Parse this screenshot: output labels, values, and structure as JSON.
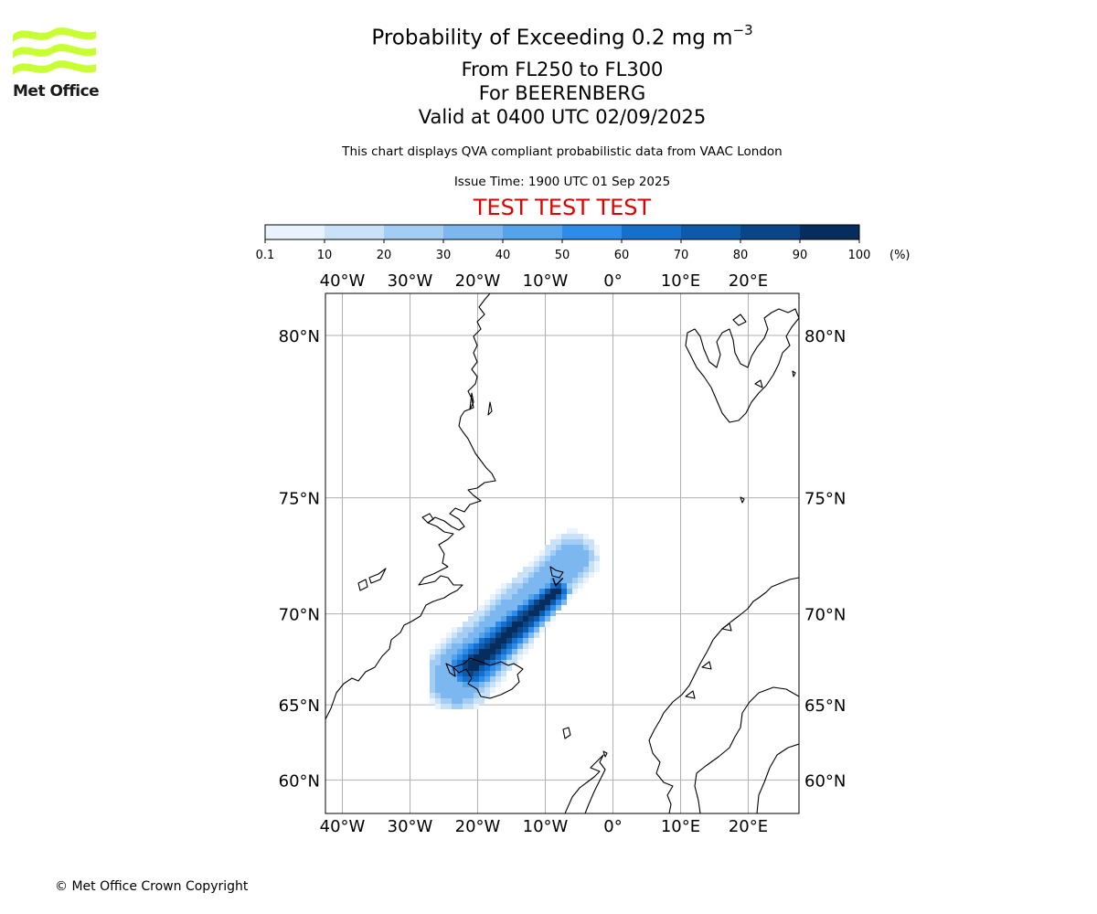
{
  "branding": {
    "logo_text": "Met Office",
    "logo_color": "#c8ff32",
    "copyright": "© Met Office Crown Copyright"
  },
  "header": {
    "title_prefix": "Probability of Exceeding 0.2 mg m",
    "title_exponent": "−3",
    "levels": "From FL250 to FL300",
    "volcano": "For BEERENBERG",
    "valid": "Valid at 0400 UTC 02/09/2025",
    "description": "This chart displays QVA compliant probabilistic data from VAAC London",
    "issue_time": "Issue Time: 1900 UTC 01 Sep 2025",
    "test_banner": "TEST TEST TEST",
    "test_banner_color": "#e00000"
  },
  "chart_data": {
    "type": "heatmap",
    "colorbar": {
      "ticks": [
        "0.1",
        "10",
        "20",
        "30",
        "40",
        "50",
        "60",
        "70",
        "80",
        "90",
        "100"
      ],
      "unit": "(%)",
      "colors": [
        "#e8f3fd",
        "#c9e2f8",
        "#a3cdf3",
        "#7cb8ef",
        "#55a3eb",
        "#2d8bea",
        "#1570cc",
        "#0d5aab",
        "#0a4588",
        "#062d5e"
      ]
    },
    "map": {
      "lon_range": [
        -42.5,
        27.5
      ],
      "lat_range": [
        57.5,
        81
      ],
      "lon_ticks": [
        -40,
        -30,
        -20,
        -10,
        0,
        10,
        20
      ],
      "lon_labels": [
        "40°W",
        "30°W",
        "20°W",
        "10°W",
        "0°",
        "10°E",
        "20°E"
      ],
      "lat_ticks": [
        60,
        65,
        70,
        75,
        80
      ],
      "lat_labels": [
        "60°N",
        "65°N",
        "70°N",
        "75°N",
        "80°N"
      ],
      "grid": true,
      "volcano_location": {
        "lon": -8.2,
        "lat": 71.1
      },
      "plume": {
        "axis_start": {
          "lon": -21,
          "lat": 67.2
        },
        "axis_end": {
          "lon": -8.2,
          "lat": 71.1
        },
        "halo_start": {
          "lon": -23,
          "lat": 66.6
        },
        "halo_end": {
          "lon": -6,
          "lat": 72.6
        },
        "core_probability_percent": 100,
        "edge_probability_percent": 10
      }
    }
  }
}
